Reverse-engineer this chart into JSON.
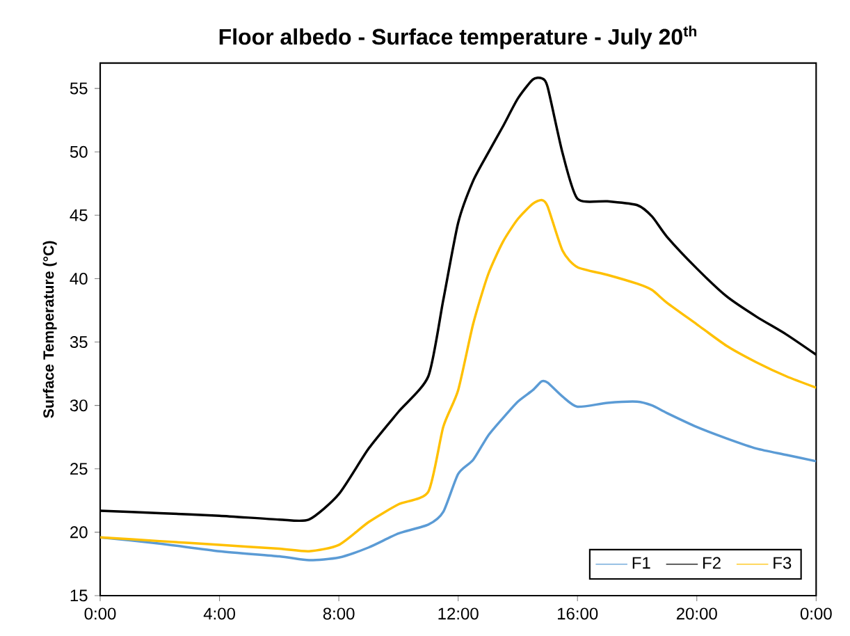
{
  "chart_data": {
    "type": "line",
    "title": "Floor albedo - Surface temperature - July 20$^{th}$",
    "ylabel": "Surface Temperature (°C)",
    "xlim": [
      0,
      24
    ],
    "ylim": [
      15,
      57
    ],
    "xticks": [
      {
        "value": 0,
        "label": "0:00"
      },
      {
        "value": 4,
        "label": "4:00"
      },
      {
        "value": 8,
        "label": "8:00"
      },
      {
        "value": 12,
        "label": "12:00"
      },
      {
        "value": 16,
        "label": "16:00"
      },
      {
        "value": 20,
        "label": "20:00"
      },
      {
        "value": 24,
        "label": "0:00"
      }
    ],
    "yticks": [
      15,
      20,
      25,
      30,
      35,
      40,
      45,
      50,
      55
    ],
    "x": [
      0,
      2,
      4,
      6,
      7,
      8,
      9,
      10,
      11,
      11.5,
      12,
      12.5,
      13,
      13.5,
      14,
      14.5,
      14.8,
      15,
      15.5,
      16,
      17,
      18,
      18.5,
      19,
      20,
      21,
      22,
      23,
      24
    ],
    "series": [
      {
        "name": "F1",
        "color": "#5b9bd5",
        "values": [
          19.6,
          19.1,
          18.5,
          18.1,
          17.8,
          18.0,
          18.8,
          19.9,
          20.6,
          21.6,
          24.6,
          25.7,
          27.6,
          29.0,
          30.3,
          31.2,
          31.9,
          31.8,
          30.7,
          29.9,
          30.2,
          30.3,
          30.0,
          29.4,
          28.3,
          27.4,
          26.6,
          26.1,
          25.6
        ]
      },
      {
        "name": "F2",
        "color": "#000000",
        "values": [
          21.7,
          21.5,
          21.3,
          21.0,
          21.0,
          23.0,
          26.6,
          29.5,
          32.3,
          38.3,
          44.4,
          47.7,
          49.9,
          52.0,
          54.2,
          55.7,
          55.8,
          55.1,
          49.9,
          46.3,
          46.1,
          45.8,
          44.9,
          43.3,
          40.8,
          38.6,
          37.0,
          35.6,
          34.0
        ]
      },
      {
        "name": "F3",
        "color": "#ffc000",
        "values": [
          19.6,
          19.3,
          19.0,
          18.7,
          18.5,
          19.0,
          20.8,
          22.2,
          23.2,
          28.3,
          31.2,
          36.4,
          40.3,
          42.9,
          44.7,
          45.9,
          46.2,
          45.7,
          42.2,
          40.9,
          40.3,
          39.6,
          39.1,
          38.1,
          36.4,
          34.7,
          33.4,
          32.3,
          31.4
        ]
      }
    ],
    "legend": "bottom right",
    "grid": false,
    "marker": "none",
    "line_style": "solid"
  }
}
